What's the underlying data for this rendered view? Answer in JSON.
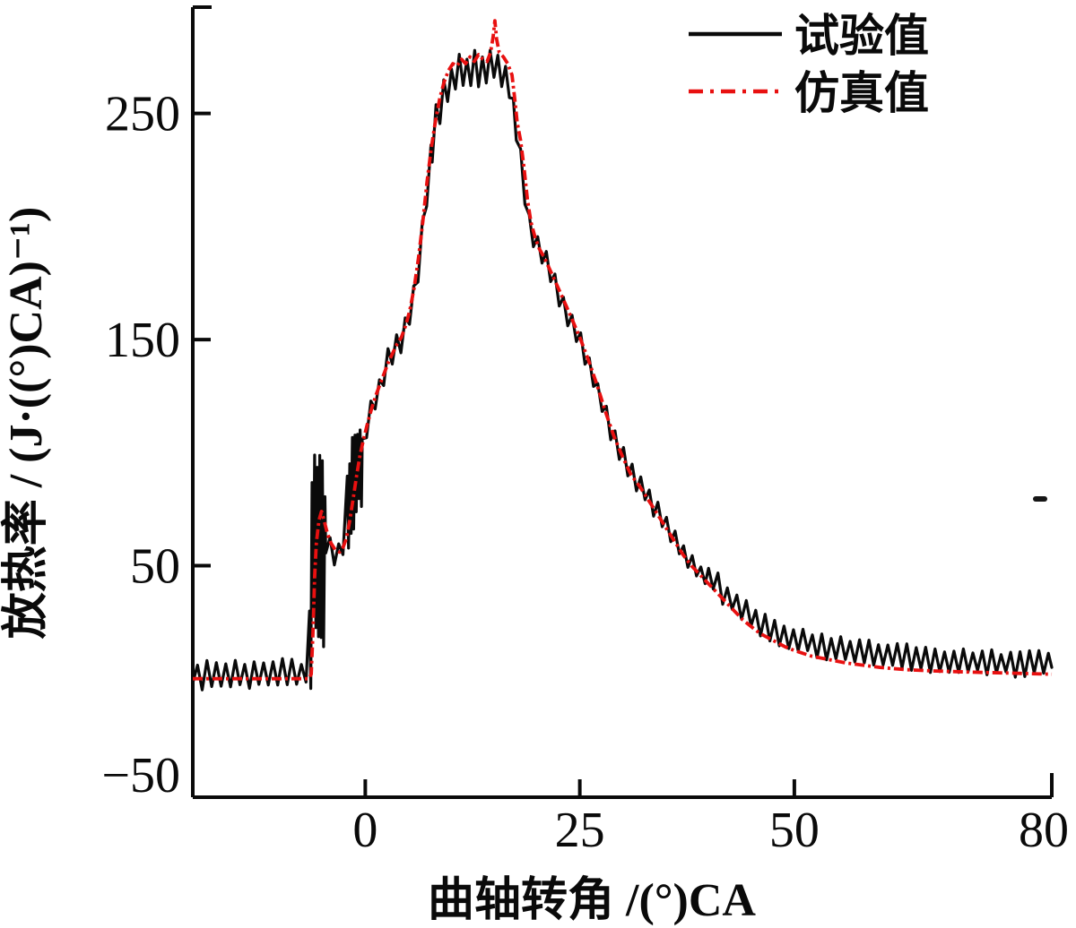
{
  "figure": {
    "background": "#ffffff"
  },
  "chart_data": {
    "type": "line",
    "title": "",
    "xlabel": "曲轴转角 /(°)CA",
    "ylabel": "放热率 / (J·((°)CA)⁻¹)",
    "xlim": [
      -20.1,
      80
    ],
    "ylim": [
      -52.4,
      297
    ],
    "grid": false,
    "xticks": [
      {
        "value": 0,
        "label": "0"
      },
      {
        "value": 25,
        "label": "25"
      },
      {
        "value": 50,
        "label": "50"
      },
      {
        "value": 80,
        "label": "80"
      }
    ],
    "yticks": [
      {
        "value": -50,
        "label": "−50"
      },
      {
        "value": 50,
        "label": "50"
      },
      {
        "value": 150,
        "label": "150"
      },
      {
        "value": 250,
        "label": "250"
      }
    ],
    "legend": {
      "position": "top-right",
      "entries": [
        {
          "label": "试验值",
          "color": "#0a0a0a",
          "line_style": "solid"
        },
        {
          "label": "仿真值",
          "color": "#e81010",
          "line_style": "dash-dot"
        }
      ]
    },
    "series": [
      {
        "name": "试验值",
        "role": "experimental",
        "color": "#0a0a0a",
        "line_style": "solid",
        "noisy": true,
        "noise_segments": [
          [
            -20.1,
            -6.5,
            7,
            0.55,
            0
          ],
          [
            -6.5,
            -4.6,
            44,
            0.15,
            -4
          ],
          [
            -4.6,
            -2.1,
            7,
            0.5,
            0
          ],
          [
            -2.1,
            -0.35,
            23,
            0.15,
            -2
          ],
          [
            -0.35,
            7.8,
            6,
            0.5,
            0
          ],
          [
            7.8,
            17.6,
            8,
            0.45,
            0
          ],
          [
            17.6,
            40,
            5,
            0.5,
            0
          ],
          [
            40,
            80,
            6,
            0.55,
            1.5
          ]
        ],
        "points": [
          [
            -20.1,
            2
          ],
          [
            -7.2,
            2
          ],
          [
            -6.5,
            4
          ],
          [
            -6.3,
            45
          ],
          [
            -6.1,
            58
          ],
          [
            -5.8,
            62
          ],
          [
            -5.4,
            60
          ],
          [
            -5.0,
            58
          ],
          [
            -4.6,
            60
          ],
          [
            -4.2,
            58
          ],
          [
            -3.8,
            56
          ],
          [
            -3.4,
            55
          ],
          [
            -3.0,
            56
          ],
          [
            -2.6,
            59
          ],
          [
            -2.3,
            63
          ],
          [
            -2.0,
            75
          ],
          [
            -1.6,
            85
          ],
          [
            -1.2,
            90
          ],
          [
            -0.8,
            95
          ],
          [
            -0.4,
            101
          ],
          [
            0,
            108
          ],
          [
            0.5,
            116
          ],
          [
            1,
            122
          ],
          [
            1.5,
            127
          ],
          [
            2,
            133
          ],
          [
            2.5,
            139
          ],
          [
            3,
            143
          ],
          [
            3.5,
            146
          ],
          [
            4,
            148
          ],
          [
            4.5,
            152
          ],
          [
            5,
            158
          ],
          [
            5.5,
            166
          ],
          [
            6,
            176
          ],
          [
            6.5,
            191
          ],
          [
            7,
            210
          ],
          [
            7.5,
            226
          ],
          [
            8,
            241
          ],
          [
            8.5,
            251
          ],
          [
            9,
            257
          ],
          [
            9.5,
            262
          ],
          [
            10,
            265
          ],
          [
            10.5,
            267
          ],
          [
            11,
            271
          ],
          [
            11.5,
            269
          ],
          [
            12,
            267
          ],
          [
            12.5,
            271
          ],
          [
            13,
            269
          ],
          [
            13.5,
            267
          ],
          [
            14,
            269
          ],
          [
            14.5,
            271
          ],
          [
            15,
            273
          ],
          [
            15.5,
            269
          ],
          [
            16,
            267
          ],
          [
            16.5,
            265
          ],
          [
            17,
            259
          ],
          [
            17.4,
            248
          ],
          [
            17.8,
            238
          ],
          [
            18.2,
            227
          ],
          [
            18.6,
            214
          ],
          [
            19,
            204
          ],
          [
            19.5,
            196
          ],
          [
            20,
            192
          ],
          [
            20.5,
            189
          ],
          [
            21,
            185
          ],
          [
            21.5,
            180
          ],
          [
            22,
            175
          ],
          [
            22.5,
            170
          ],
          [
            23,
            165
          ],
          [
            24,
            157
          ],
          [
            25,
            149
          ],
          [
            26,
            139
          ],
          [
            27,
            128
          ],
          [
            28,
            117
          ],
          [
            29,
            106
          ],
          [
            30,
            98
          ],
          [
            31,
            91
          ],
          [
            32,
            86
          ],
          [
            33,
            80
          ],
          [
            34,
            74
          ],
          [
            35,
            68
          ],
          [
            36,
            62
          ],
          [
            37,
            56
          ],
          [
            38,
            51
          ],
          [
            39,
            47
          ],
          [
            40,
            44
          ],
          [
            41,
            40
          ],
          [
            42,
            36
          ],
          [
            43,
            32
          ],
          [
            44,
            29
          ],
          [
            45,
            26
          ],
          [
            46,
            23
          ],
          [
            47,
            21
          ],
          [
            48,
            19
          ],
          [
            49,
            17
          ],
          [
            50,
            16
          ],
          [
            52,
            14
          ],
          [
            54,
            12
          ],
          [
            56,
            11
          ],
          [
            58,
            10
          ],
          [
            60,
            9
          ],
          [
            63,
            8
          ],
          [
            66,
            7
          ],
          [
            70,
            6
          ],
          [
            75,
            5
          ],
          [
            80,
            5
          ]
        ]
      },
      {
        "name": "仿真值",
        "role": "simulation",
        "color": "#e81010",
        "line_style": "dash-dot",
        "noisy": false,
        "points": [
          [
            -20.1,
            0
          ],
          [
            -10,
            0
          ],
          [
            -6.6,
            0
          ],
          [
            -6.3,
            2
          ],
          [
            -6.1,
            20
          ],
          [
            -5.9,
            45
          ],
          [
            -5.7,
            60
          ],
          [
            -5.4,
            70
          ],
          [
            -5.1,
            74
          ],
          [
            -4.8,
            70
          ],
          [
            -4.4,
            64
          ],
          [
            -4.0,
            60
          ],
          [
            -3.5,
            57
          ],
          [
            -3.0,
            56
          ],
          [
            -2.6,
            58
          ],
          [
            -2.2,
            62
          ],
          [
            -1.8,
            70
          ],
          [
            -1.4,
            80
          ],
          [
            -1.0,
            90
          ],
          [
            -0.6,
            99
          ],
          [
            -0.2,
            106
          ],
          [
            0.2,
            112
          ],
          [
            0.7,
            119
          ],
          [
            1.2,
            125
          ],
          [
            1.7,
            130
          ],
          [
            2.2,
            135
          ],
          [
            2.7,
            140
          ],
          [
            3.2,
            144
          ],
          [
            3.7,
            148
          ],
          [
            4.2,
            151
          ],
          [
            4.7,
            156
          ],
          [
            5.2,
            163
          ],
          [
            5.7,
            173
          ],
          [
            6.2,
            186
          ],
          [
            6.7,
            202
          ],
          [
            7.2,
            220
          ],
          [
            7.7,
            235
          ],
          [
            8.2,
            247
          ],
          [
            8.7,
            257
          ],
          [
            9.2,
            264
          ],
          [
            9.7,
            269
          ],
          [
            10.2,
            272
          ],
          [
            10.7,
            271
          ],
          [
            11.2,
            274
          ],
          [
            11.7,
            272
          ],
          [
            12.2,
            275
          ],
          [
            12.7,
            273
          ],
          [
            13.2,
            276
          ],
          [
            13.7,
            274
          ],
          [
            14.2,
            273
          ],
          [
            14.6,
            277
          ],
          [
            14.9,
            284
          ],
          [
            15.1,
            291
          ],
          [
            15.3,
            283
          ],
          [
            15.6,
            277
          ],
          [
            16.1,
            275
          ],
          [
            16.6,
            272
          ],
          [
            17.1,
            267
          ],
          [
            17.4,
            257
          ],
          [
            17.7,
            246
          ],
          [
            18.1,
            238
          ],
          [
            18.5,
            226
          ],
          [
            18.9,
            212
          ],
          [
            19.3,
            202
          ],
          [
            19.8,
            195
          ],
          [
            20.3,
            190
          ],
          [
            20.9,
            186
          ],
          [
            21.5,
            181
          ],
          [
            22.1,
            176
          ],
          [
            22.7,
            171
          ],
          [
            23.4,
            165
          ],
          [
            24.2,
            158
          ],
          [
            25,
            151
          ],
          [
            26,
            141
          ],
          [
            27,
            130
          ],
          [
            28,
            118
          ],
          [
            29,
            107
          ],
          [
            30,
            98
          ],
          [
            31,
            90
          ],
          [
            32,
            85
          ],
          [
            33,
            79
          ],
          [
            34,
            73
          ],
          [
            35,
            67
          ],
          [
            36,
            61
          ],
          [
            37,
            55
          ],
          [
            38,
            50
          ],
          [
            39,
            46
          ],
          [
            40,
            42
          ],
          [
            41,
            38
          ],
          [
            42,
            34
          ],
          [
            43,
            30
          ],
          [
            44,
            26
          ],
          [
            45,
            23
          ],
          [
            46,
            20
          ],
          [
            47,
            18
          ],
          [
            48,
            16
          ],
          [
            49,
            14
          ],
          [
            50,
            12.5
          ],
          [
            52,
            10
          ],
          [
            54,
            8.5
          ],
          [
            56,
            7
          ],
          [
            58,
            6
          ],
          [
            60,
            5
          ],
          [
            63,
            4
          ],
          [
            66,
            3.5
          ],
          [
            70,
            3
          ],
          [
            75,
            2.5
          ],
          [
            80,
            2
          ]
        ]
      }
    ]
  }
}
